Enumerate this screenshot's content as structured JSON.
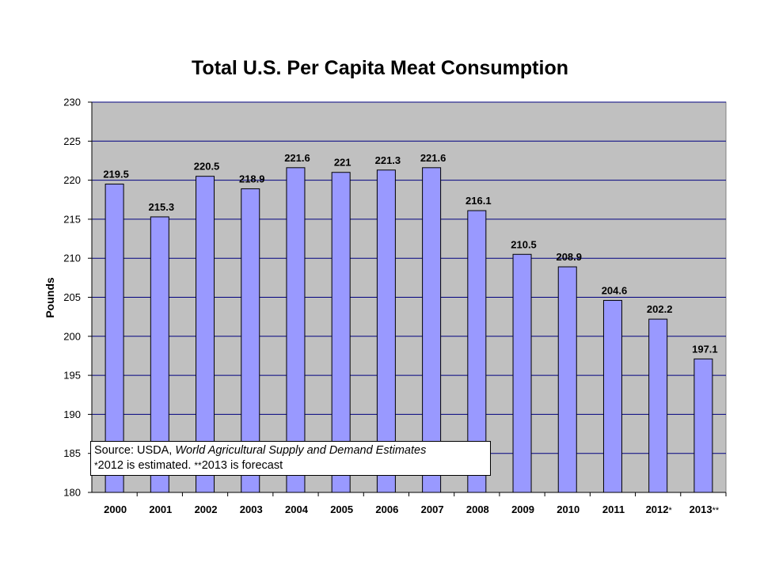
{
  "chart_data": {
    "type": "bar",
    "title": "Total U.S. Per Capita Meat Consumption",
    "ylabel": "Pounds",
    "xlabel": "",
    "ylim": [
      180,
      230
    ],
    "ytick_step": 5,
    "ytick_labels": [
      "180",
      "185",
      "190",
      "195",
      "200",
      "205",
      "210",
      "215",
      "220",
      "225",
      "230"
    ],
    "categories": [
      "2000",
      "2001",
      "2002",
      "2003",
      "2004",
      "2005",
      "2006",
      "2007",
      "2008",
      "2009",
      "2010",
      "2011",
      "2012",
      "2013"
    ],
    "category_suffixes": [
      "",
      "",
      "",
      "",
      "",
      "",
      "",
      "",
      "",
      "",
      "",
      "",
      "*",
      "**"
    ],
    "values": [
      219.5,
      215.3,
      220.5,
      218.9,
      221.6,
      221,
      221.3,
      221.6,
      216.1,
      210.5,
      208.9,
      204.6,
      202.2,
      197.1
    ],
    "data_labels": [
      "219.5",
      "215.3",
      "220.5",
      "218.9",
      "221.6",
      "221",
      "221.3",
      "221.6",
      "216.1",
      "210.5",
      "208.9",
      "204.6",
      "202.2",
      "197.1"
    ],
    "grid": true,
    "colors": {
      "bar": "#9999ff",
      "plot_bg": "#c0c0c0",
      "grid": "#000080",
      "bar_edge": "#000000"
    }
  },
  "source": {
    "prefix": "Source: USDA, ",
    "publication": "World Agricultural Supply and Demand Estimates",
    "note_star1": "*",
    "note_text1": "2012 is estimated. ",
    "note_star2": "**",
    "note_text2": "2013 is forecast"
  }
}
